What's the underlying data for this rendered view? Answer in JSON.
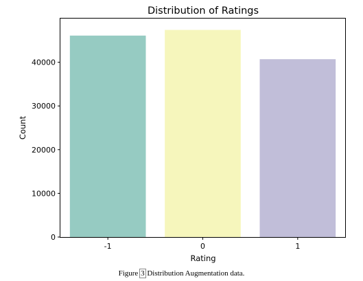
{
  "chart_data": {
    "type": "bar",
    "title": "Distribution of Ratings",
    "xlabel": "Rating",
    "ylabel": "Count",
    "categories": [
      "-1",
      "0",
      "1"
    ],
    "values": [
      46100,
      47400,
      40700
    ],
    "ylim": [
      0,
      50000
    ],
    "yticks": [
      0,
      10000,
      20000,
      30000,
      40000
    ],
    "colors": [
      "#96cbc2",
      "#f6f6bc",
      "#c1bed9"
    ],
    "grid": false,
    "legend": "none"
  },
  "caption": {
    "prefix": "Figure",
    "number": "3",
    "text": "Distribution Augmentation data."
  }
}
